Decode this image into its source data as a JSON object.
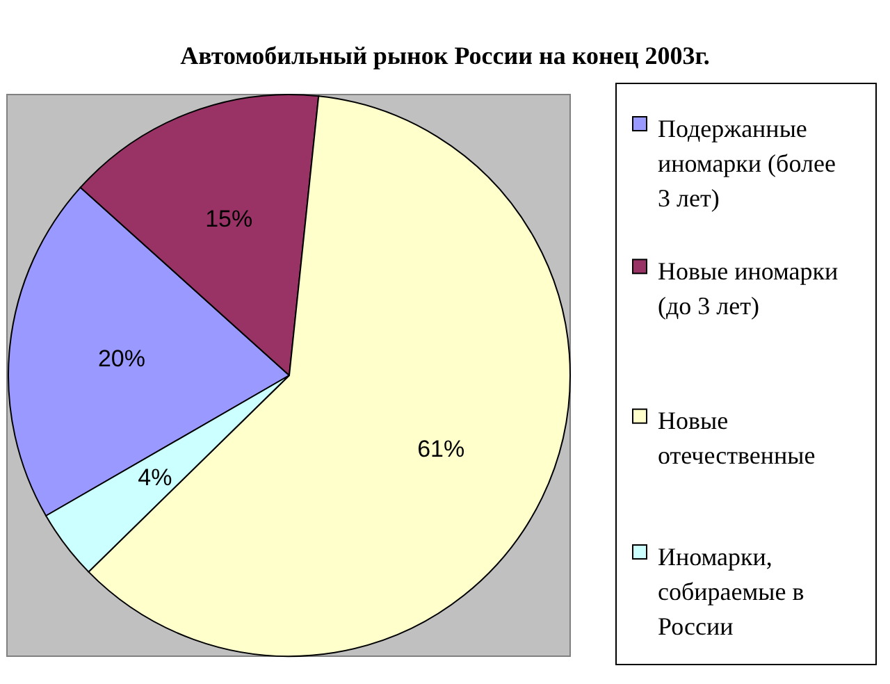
{
  "chart_data": {
    "type": "pie",
    "title": "Автомобильный рынок России на конец 2003г.",
    "categories": [
      "Подержанные иномарки (более 3 лет)",
      "Новые иномарки (до 3 лет)",
      "Новые отечественные",
      "Иномарки, собираемые в России"
    ],
    "values": [
      20,
      15,
      61,
      4
    ],
    "colors": [
      "#9999ff",
      "#993366",
      "#ffffcc",
      "#ccffff"
    ],
    "value_labels": [
      "20%",
      "15%",
      "61%",
      "4%"
    ],
    "legend": "right"
  }
}
